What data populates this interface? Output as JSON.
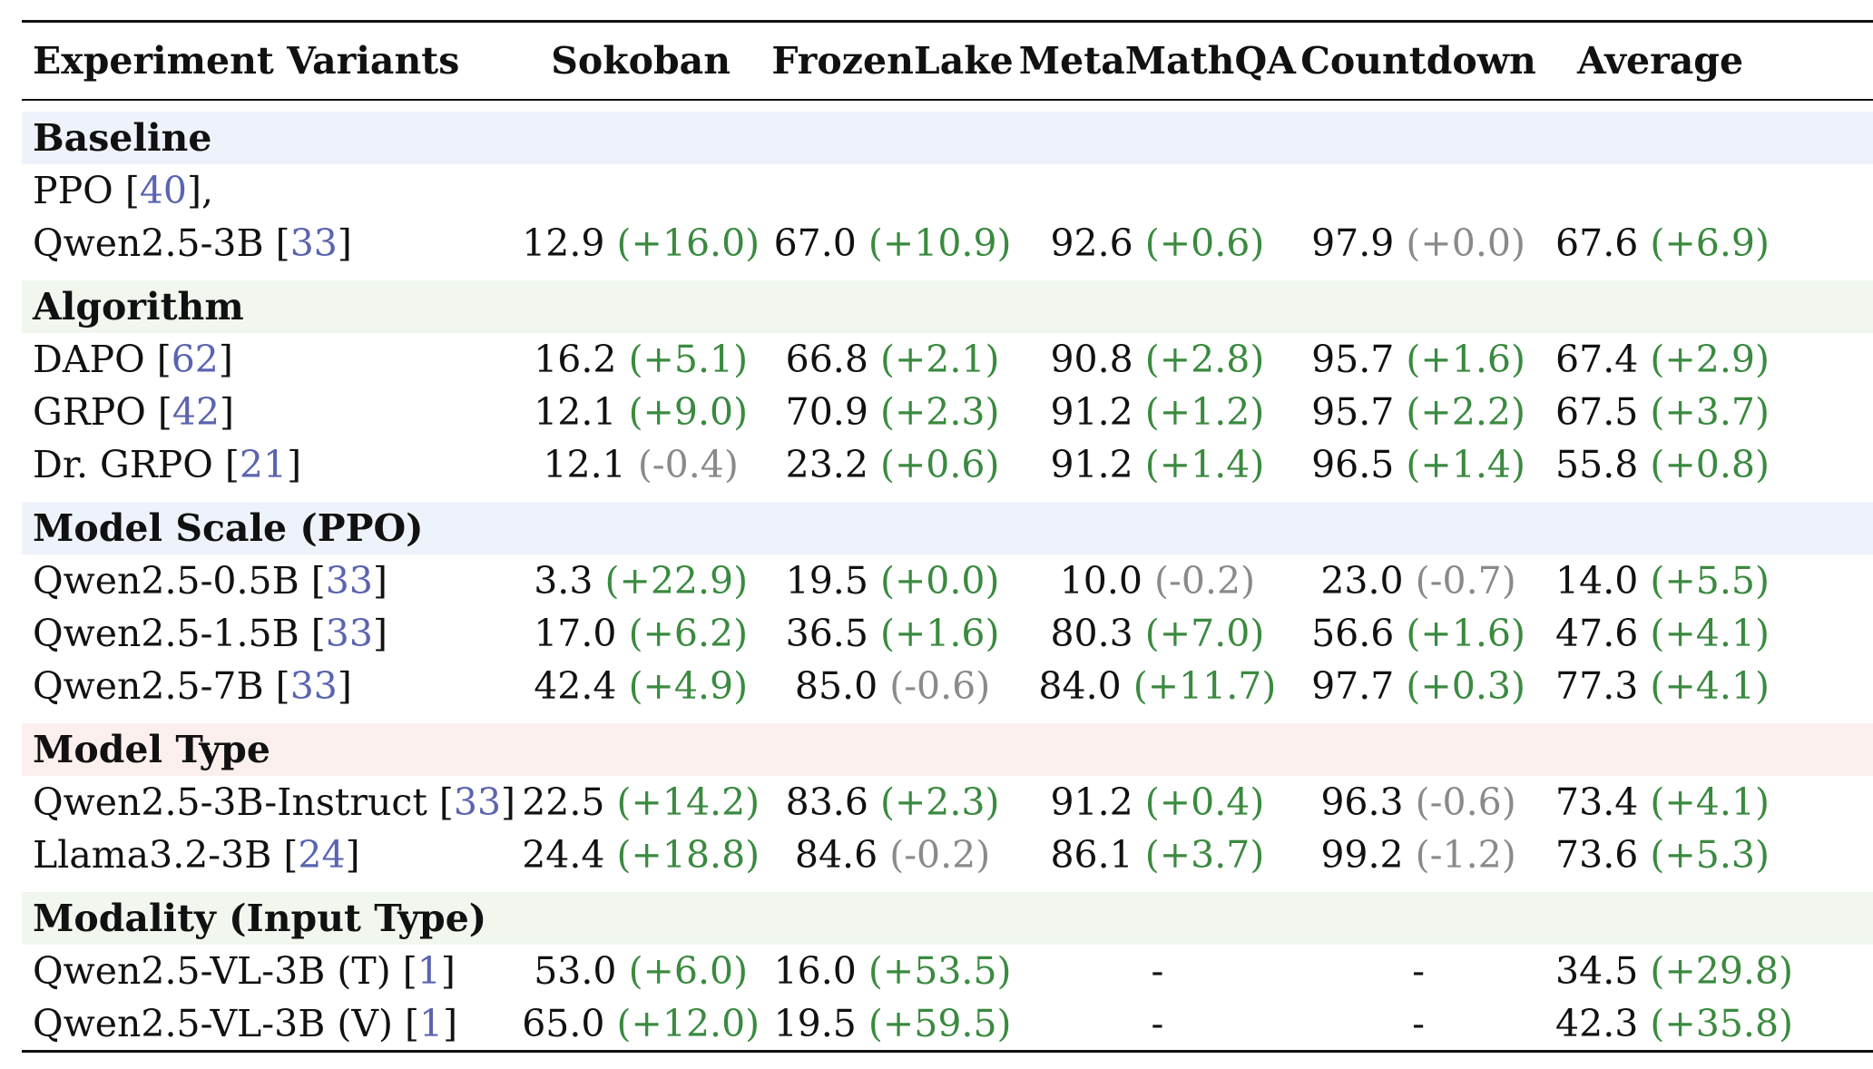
{
  "colors": {
    "ref": "#5a64b0",
    "positive": "#3a8a3f",
    "neutral": "#8a8a8a",
    "baseline_bg": "#eef3fb",
    "algorithm_bg": "#f1f7ef",
    "scale_bg": "#eef3fb",
    "type_bg": "#fcf0ee",
    "modality_bg": "#f1f7ef"
  },
  "headers": [
    "Experiment Variants",
    "Sokoban",
    "FrozenLake",
    "MetaMathQA",
    "Countdown",
    "Average"
  ],
  "sections": [
    {
      "title": "Baseline",
      "bg": "#eef3fb",
      "rows": [
        {
          "name": "PPO [",
          "ref": "40",
          "suffix": "],",
          "name2": "Qwen2.5-3B [",
          "ref2": "33",
          "suffix2": "]",
          "cells": [
            [
              "12.9",
              "(+16.0)",
              "pos"
            ],
            [
              "67.0",
              "(+10.9)",
              "pos"
            ],
            [
              "92.6",
              "(+0.6)",
              "pos"
            ],
            [
              "97.9",
              "(+0.0)",
              "neg"
            ],
            [
              "67.6",
              "(+6.9)",
              "pos"
            ]
          ]
        }
      ]
    },
    {
      "title": "Algorithm",
      "bg": "#f1f7ef",
      "rows": [
        {
          "name": "DAPO [",
          "ref": "62",
          "suffix": "]",
          "cells": [
            [
              "16.2",
              "(+5.1)",
              "pos"
            ],
            [
              "66.8",
              "(+2.1)",
              "pos"
            ],
            [
              "90.8",
              "(+2.8)",
              "pos"
            ],
            [
              "95.7",
              "(+1.6)",
              "pos"
            ],
            [
              "67.4",
              "(+2.9)",
              "pos"
            ]
          ]
        },
        {
          "name": "GRPO [",
          "ref": "42",
          "suffix": "]",
          "cells": [
            [
              "12.1",
              "(+9.0)",
              "pos"
            ],
            [
              "70.9",
              "(+2.3)",
              "pos"
            ],
            [
              "91.2",
              "(+1.2)",
              "pos"
            ],
            [
              "95.7",
              "(+2.2)",
              "pos"
            ],
            [
              "67.5",
              "(+3.7)",
              "pos"
            ]
          ]
        },
        {
          "name": "Dr. GRPO [",
          "ref": "21",
          "suffix": "]",
          "cells": [
            [
              "12.1",
              "(-0.4)",
              "neg"
            ],
            [
              "23.2",
              "(+0.6)",
              "pos"
            ],
            [
              "91.2",
              "(+1.4)",
              "pos"
            ],
            [
              "96.5",
              "(+1.4)",
              "pos"
            ],
            [
              "55.8",
              "(+0.8)",
              "pos"
            ]
          ]
        }
      ]
    },
    {
      "title": "Model Scale (PPO)",
      "bg": "#eef3fb",
      "rows": [
        {
          "name": "Qwen2.5-0.5B [",
          "ref": "33",
          "suffix": "]",
          "cells": [
            [
              "3.3",
              "(+22.9)",
              "pos"
            ],
            [
              "19.5",
              "(+0.0)",
              "pos"
            ],
            [
              "10.0",
              "(-0.2)",
              "neg"
            ],
            [
              "23.0",
              "(-0.7)",
              "neg"
            ],
            [
              "14.0",
              "(+5.5)",
              "pos"
            ]
          ]
        },
        {
          "name": "Qwen2.5-1.5B [",
          "ref": "33",
          "suffix": "]",
          "cells": [
            [
              "17.0",
              "(+6.2)",
              "pos"
            ],
            [
              "36.5",
              "(+1.6)",
              "pos"
            ],
            [
              "80.3",
              "(+7.0)",
              "pos"
            ],
            [
              "56.6",
              "(+1.6)",
              "pos"
            ],
            [
              "47.6",
              "(+4.1)",
              "pos"
            ]
          ]
        },
        {
          "name": "Qwen2.5-7B [",
          "ref": "33",
          "suffix": "]",
          "cells": [
            [
              "42.4",
              "(+4.9)",
              "pos"
            ],
            [
              "85.0",
              "(-0.6)",
              "neg"
            ],
            [
              "84.0",
              "(+11.7)",
              "pos"
            ],
            [
              "97.7",
              "(+0.3)",
              "pos"
            ],
            [
              "77.3",
              "(+4.1)",
              "pos"
            ]
          ]
        }
      ]
    },
    {
      "title": "Model Type",
      "bg": "#fcf0ee",
      "rows": [
        {
          "name": "Qwen2.5-3B-Instruct [",
          "ref": "33",
          "suffix": "]",
          "cells": [
            [
              "22.5",
              "(+14.2)",
              "pos"
            ],
            [
              "83.6",
              "(+2.3)",
              "pos"
            ],
            [
              "91.2",
              "(+0.4)",
              "pos"
            ],
            [
              "96.3",
              "(-0.6)",
              "neg"
            ],
            [
              "73.4",
              "(+4.1)",
              "pos"
            ]
          ]
        },
        {
          "name": "Llama3.2-3B [",
          "ref": "24",
          "suffix": "]",
          "cells": [
            [
              "24.4",
              "(+18.8)",
              "pos"
            ],
            [
              "84.6",
              "(-0.2)",
              "neg"
            ],
            [
              "86.1",
              "(+3.7)",
              "pos"
            ],
            [
              "99.2",
              "(-1.2)",
              "neg"
            ],
            [
              "73.6",
              "(+5.3)",
              "pos"
            ]
          ]
        }
      ]
    },
    {
      "title": "Modality (Input Type)",
      "bg": "#f1f7ef",
      "rows": [
        {
          "name": "Qwen2.5-VL-3B (T) [",
          "ref": "1",
          "suffix": "]",
          "cells": [
            [
              "53.0",
              "(+6.0)",
              "pos"
            ],
            [
              "16.0",
              "(+53.5)",
              "pos"
            ],
            [
              "-",
              "",
              ""
            ],
            [
              "-",
              "",
              ""
            ],
            [
              "34.5",
              "(+29.8)",
              "pos"
            ]
          ]
        },
        {
          "name": "Qwen2.5-VL-3B (V) [",
          "ref": "1",
          "suffix": "]",
          "cells": [
            [
              "65.0",
              "(+12.0)",
              "pos"
            ],
            [
              "19.5",
              "(+59.5)",
              "pos"
            ],
            [
              "-",
              "",
              ""
            ],
            [
              "-",
              "",
              ""
            ],
            [
              "42.3",
              "(+35.8)",
              "pos"
            ]
          ]
        }
      ]
    }
  ]
}
